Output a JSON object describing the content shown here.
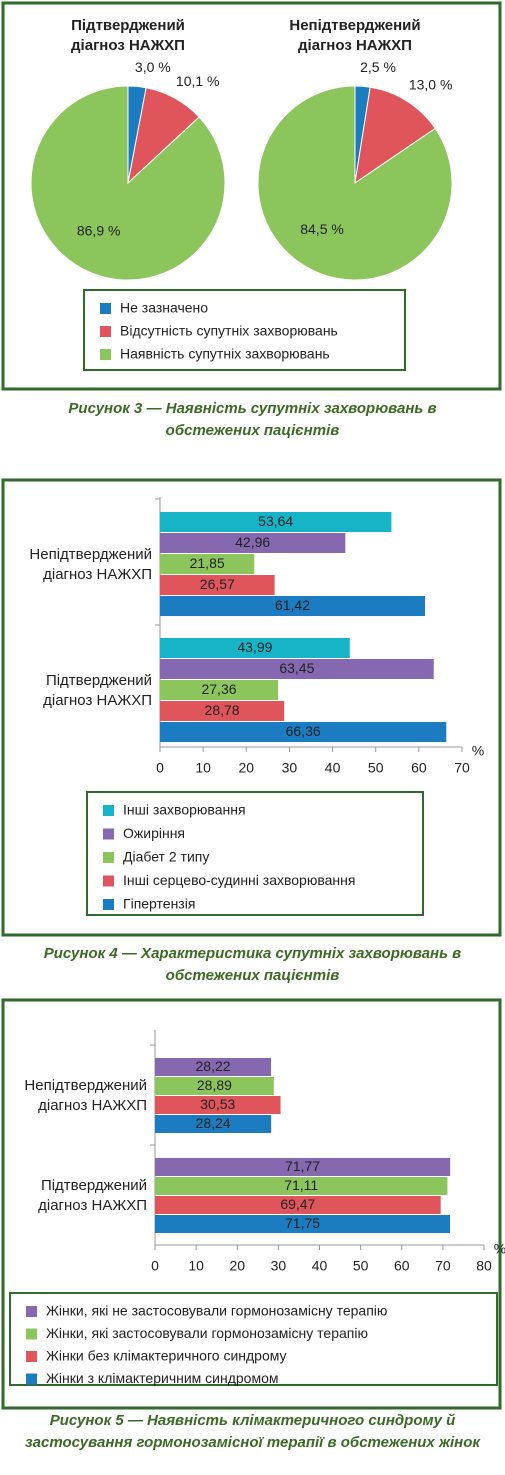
{
  "chart_data": [
    {
      "type": "pie",
      "categories": [
        "Не зазначено",
        "Відсутність супутніх захворювань",
        "Наявність супутніх захворювань"
      ],
      "colors": [
        "#1b7cc1",
        "#e0555b",
        "#8cc55b"
      ],
      "pies": [
        {
          "title": "Підтверджений діагноз НАЖХП",
          "values": [
            3.0,
            10.1,
            86.9
          ],
          "value_labels": [
            "3,0 %",
            "10,1 %",
            "86,9 %"
          ]
        },
        {
          "title": "Непідтверджений діагноз НАЖХП",
          "values": [
            2.5,
            13.0,
            84.5
          ],
          "value_labels": [
            "2,5 %",
            "13,0 %",
            "84,5 %"
          ]
        }
      ],
      "caption": "Рисунок 3 — Наявність супутніх захворювань в обстежених пацієнтів"
    },
    {
      "type": "hbar",
      "categories": [
        "Непідтверджений діагноз НАЖХП",
        "Підтверджений діагноз НАЖХП"
      ],
      "series": [
        {
          "name": "Інші захворювання",
          "color": "#17b4c8",
          "values": [
            53.64,
            43.99
          ],
          "value_labels": [
            "53,64",
            "43,99"
          ]
        },
        {
          "name": "Ожиріння",
          "color": "#8568b0",
          "values": [
            42.96,
            63.45
          ],
          "value_labels": [
            "42,96",
            "63,45"
          ]
        },
        {
          "name": "Діабет 2 типу",
          "color": "#8cc55b",
          "values": [
            21.85,
            27.36
          ],
          "value_labels": [
            "21,85",
            "27,36"
          ]
        },
        {
          "name": "Інші серцево-судинні захворювання",
          "color": "#e0555b",
          "values": [
            26.57,
            28.78
          ],
          "value_labels": [
            "26,57",
            "28,78"
          ]
        },
        {
          "name": "Гіпертензія",
          "color": "#1b7cc1",
          "values": [
            61.42,
            66.36
          ],
          "value_labels": [
            "61,42",
            "66,36"
          ]
        }
      ],
      "xlim": [
        0,
        70
      ],
      "xticks": [
        0,
        10,
        20,
        30,
        40,
        50,
        60,
        70
      ],
      "x_label": "%",
      "caption": "Рисунок 4 — Характеристика супутніх захворювань в обстежених пацієнтів"
    },
    {
      "type": "hbar",
      "categories": [
        "Непідтверджений діагноз НАЖХП",
        "Підтверджений діагноз НАЖХП"
      ],
      "series": [
        {
          "name": "Жінки, які не застосовували гормонозамісну терапію",
          "color": "#8568b0",
          "values": [
            28.22,
            71.77
          ],
          "value_labels": [
            "28,22",
            "71,77"
          ]
        },
        {
          "name": "Жінки, які застосовували гормонозамісну терапію",
          "color": "#8cc55b",
          "values": [
            28.89,
            71.11
          ],
          "value_labels": [
            "28,89",
            "71,11"
          ]
        },
        {
          "name": "Жінки без клімактеричного синдрому",
          "color": "#e0555b",
          "values": [
            30.53,
            69.47
          ],
          "value_labels": [
            "30,53",
            "69,47"
          ]
        },
        {
          "name": "Жінки з клімактеричним синдромом",
          "color": "#1b7cc1",
          "values": [
            28.24,
            71.75
          ],
          "value_labels": [
            "28,24",
            "71,75"
          ]
        }
      ],
      "xlim": [
        0,
        80
      ],
      "xticks": [
        0,
        10,
        20,
        30,
        40,
        50,
        60,
        70,
        80
      ],
      "x_label": "%",
      "caption": "Рисунок 5 — Наявність клімактеричного синдрому й застосування гормонозамісної терапії в обстежених жінок"
    }
  ]
}
